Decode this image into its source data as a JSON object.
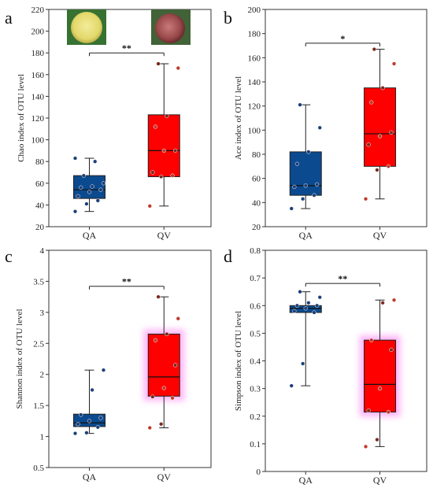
{
  "colors": {
    "QA": "#0b4a8f",
    "QV": "#ff0000",
    "glow": "#ff7af0"
  },
  "photos": {
    "QA": "yellow-gall-photo",
    "QV": "red-gall-photo"
  },
  "chart_data": [
    {
      "type": "box",
      "panel_label": "a",
      "ylabel": "Chao index of OTU level",
      "ylim": [
        20,
        220
      ],
      "yticks": [
        20,
        40,
        60,
        80,
        100,
        120,
        140,
        160,
        180,
        200,
        220
      ],
      "categories": [
        "QA",
        "QV"
      ],
      "significance": "**",
      "boxes": [
        {
          "group": "QA",
          "q1": 46,
          "median": 54,
          "q3": 67,
          "whisker_low": 34,
          "whisker_high": 83,
          "points": [
            34,
            41,
            44,
            48,
            52,
            54,
            56,
            57,
            60,
            67,
            80,
            83
          ]
        },
        {
          "group": "QV",
          "q1": 66,
          "median": 90,
          "q3": 123,
          "whisker_low": 39,
          "whisker_high": 170,
          "points": [
            39,
            66,
            67,
            70,
            90,
            90,
            112,
            122,
            166,
            170
          ]
        }
      ]
    },
    {
      "type": "box",
      "panel_label": "b",
      "ylabel": "Ace index of OTU level",
      "ylim": [
        20,
        200
      ],
      "yticks": [
        20,
        40,
        60,
        80,
        100,
        120,
        140,
        160,
        180,
        200
      ],
      "categories": [
        "QA",
        "QV"
      ],
      "significance": "*",
      "boxes": [
        {
          "group": "QA",
          "q1": 46,
          "median": 54,
          "q3": 82,
          "whisker_low": 35,
          "whisker_high": 121,
          "points": [
            35,
            43,
            46,
            53,
            54,
            55,
            72,
            82,
            102,
            121
          ]
        },
        {
          "group": "QV",
          "q1": 70,
          "median": 97,
          "q3": 135,
          "whisker_low": 43,
          "whisker_high": 167,
          "points": [
            43,
            67,
            70,
            88,
            95,
            98,
            123,
            135,
            155,
            167
          ]
        }
      ]
    },
    {
      "type": "box",
      "panel_label": "c",
      "ylabel": "Shannon index of OTU level",
      "ylim": [
        0.5,
        4
      ],
      "yticks": [
        0.5,
        1,
        1.5,
        2,
        2.5,
        3,
        3.5,
        4
      ],
      "categories": [
        "QA",
        "QV"
      ],
      "significance": "**",
      "glow_group": "QV",
      "boxes": [
        {
          "group": "QA",
          "q1": 1.16,
          "median": 1.22,
          "q3": 1.36,
          "whisker_low": 1.05,
          "whisker_high": 2.07,
          "points": [
            1.05,
            1.06,
            1.15,
            1.2,
            1.25,
            1.3,
            1.35,
            1.75,
            2.07
          ]
        },
        {
          "group": "QV",
          "q1": 1.65,
          "median": 1.96,
          "q3": 2.65,
          "whisker_low": 1.14,
          "whisker_high": 3.25,
          "points": [
            1.14,
            1.2,
            1.62,
            1.64,
            1.78,
            2.15,
            2.55,
            2.65,
            2.9,
            3.25
          ]
        }
      ]
    },
    {
      "type": "box",
      "panel_label": "d",
      "ylabel": "Simpson index of OTU level",
      "ylim": [
        0,
        0.8
      ],
      "yticks": [
        0,
        0.1,
        0.2,
        0.3,
        0.4,
        0.5,
        0.6,
        0.7,
        0.8
      ],
      "categories": [
        "QA",
        "QV"
      ],
      "significance": "**",
      "glow_group": "QV",
      "boxes": [
        {
          "group": "QA",
          "q1": 0.575,
          "median": 0.59,
          "q3": 0.6,
          "whisker_low": 0.31,
          "whisker_high": 0.65,
          "points": [
            0.31,
            0.39,
            0.575,
            0.58,
            0.59,
            0.6,
            0.6,
            0.61,
            0.63,
            0.65
          ]
        },
        {
          "group": "QV",
          "q1": 0.215,
          "median": 0.315,
          "q3": 0.475,
          "whisker_low": 0.09,
          "whisker_high": 0.62,
          "points": [
            0.09,
            0.115,
            0.215,
            0.22,
            0.3,
            0.44,
            0.475,
            0.61,
            0.62
          ]
        }
      ]
    }
  ]
}
